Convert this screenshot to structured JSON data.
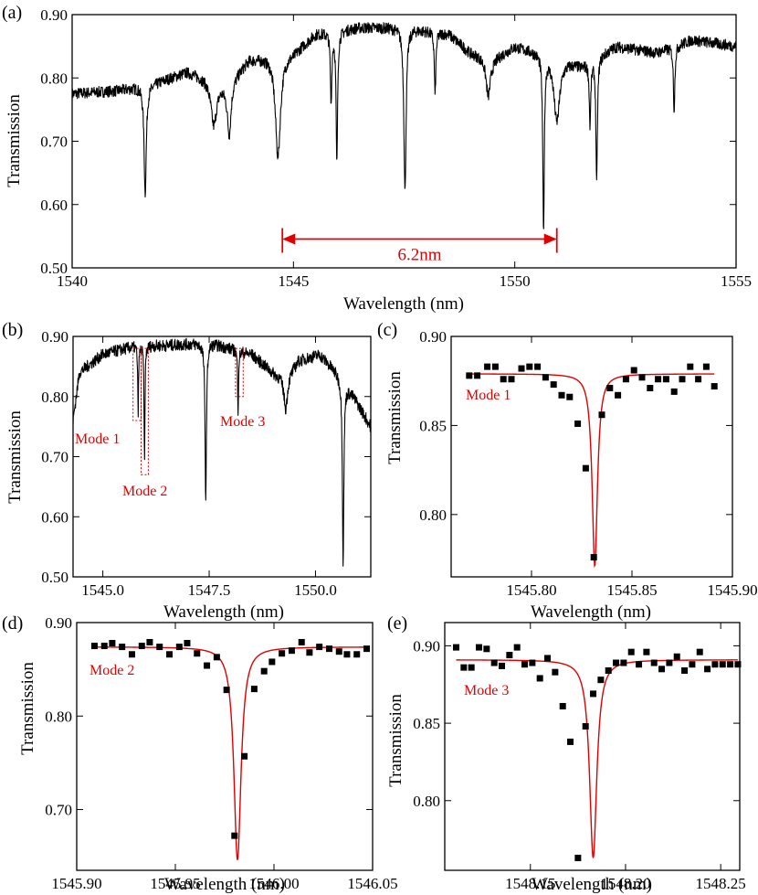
{
  "figure": {
    "colors": {
      "spectrum": "#000000",
      "fit": "#e00000",
      "annotation": "#e00000",
      "point": "#000000"
    }
  },
  "chart_data": [
    {
      "panel": "(a)",
      "type": "line",
      "xlabel": "Wavelength (nm)",
      "ylabel": "Transmission",
      "xlim": [
        1540,
        1555
      ],
      "ylim": [
        0.5,
        0.9
      ],
      "xticks": [
        1540,
        1545,
        1550,
        1555
      ],
      "xtick_labels": [
        "1540",
        "1545",
        "1550",
        "1555"
      ],
      "yticks": [
        0.5,
        0.6,
        0.7,
        0.8,
        0.9
      ],
      "ytick_labels": [
        "0.50",
        "0.60",
        "0.70",
        "0.80",
        "0.90"
      ],
      "baseline": [
        [
          1540,
          0.775
        ],
        [
          1541.0,
          0.78
        ],
        [
          1541.8,
          0.79
        ],
        [
          1542.6,
          0.81
        ],
        [
          1543.5,
          0.79
        ],
        [
          1544.0,
          0.83
        ],
        [
          1545.0,
          0.84
        ],
        [
          1545.5,
          0.87
        ],
        [
          1546.5,
          0.88
        ],
        [
          1547.5,
          0.88
        ],
        [
          1548.5,
          0.87
        ],
        [
          1549.0,
          0.84
        ],
        [
          1549.5,
          0.83
        ],
        [
          1550.0,
          0.85
        ],
        [
          1550.6,
          0.84
        ],
        [
          1551.5,
          0.82
        ],
        [
          1552.3,
          0.85
        ],
        [
          1553.2,
          0.84
        ],
        [
          1554.0,
          0.86
        ],
        [
          1555,
          0.85
        ]
      ],
      "dips": [
        {
          "center": 1541.65,
          "depth": 0.17,
          "width": 0.03
        },
        {
          "center": 1543.2,
          "depth": 0.07,
          "width": 0.08
        },
        {
          "center": 1543.55,
          "depth": 0.08,
          "width": 0.05
        },
        {
          "center": 1544.65,
          "depth": 0.16,
          "width": 0.07
        },
        {
          "center": 1545.85,
          "depth": 0.11,
          "width": 0.02
        },
        {
          "center": 1545.98,
          "depth": 0.21,
          "width": 0.02
        },
        {
          "center": 1547.52,
          "depth": 0.26,
          "width": 0.03
        },
        {
          "center": 1548.2,
          "depth": 0.1,
          "width": 0.02
        },
        {
          "center": 1549.4,
          "depth": 0.06,
          "width": 0.06
        },
        {
          "center": 1550.65,
          "depth": 0.28,
          "width": 0.02
        },
        {
          "center": 1550.95,
          "depth": 0.1,
          "width": 0.08
        },
        {
          "center": 1551.7,
          "depth": 0.1,
          "width": 0.02
        },
        {
          "center": 1551.85,
          "depth": 0.2,
          "width": 0.02
        },
        {
          "center": 1553.6,
          "depth": 0.1,
          "width": 0.02
        }
      ],
      "annotation": {
        "text": "6.2nm",
        "x_from": 1544.75,
        "x_to": 1550.95,
        "y": 0.537
      }
    },
    {
      "panel": "(b)",
      "type": "line",
      "xlabel": "Wavelength (nm)",
      "ylabel": "Transmission",
      "xlim": [
        1544.3,
        1551.3
      ],
      "ylim": [
        0.5,
        0.9
      ],
      "xticks": [
        1545.0,
        1547.5,
        1550.0
      ],
      "xtick_labels": [
        "1545.0",
        "1547.5",
        "1550.0"
      ],
      "yticks": [
        0.5,
        0.6,
        0.7,
        0.8,
        0.9
      ],
      "ytick_labels": [
        "0.50",
        "0.60",
        "0.70",
        "0.80",
        "0.90"
      ],
      "baseline": [
        [
          1544.3,
          0.76
        ],
        [
          1544.45,
          0.84
        ],
        [
          1545.0,
          0.87
        ],
        [
          1545.8,
          0.885
        ],
        [
          1546.5,
          0.885
        ],
        [
          1547.5,
          0.89
        ],
        [
          1548.5,
          0.87
        ],
        [
          1549.0,
          0.84
        ],
        [
          1549.3,
          0.83
        ],
        [
          1549.6,
          0.86
        ],
        [
          1550.1,
          0.87
        ],
        [
          1550.5,
          0.84
        ],
        [
          1550.9,
          0.8
        ],
        [
          1551.3,
          0.75
        ]
      ],
      "dips": [
        {
          "center": 1545.83,
          "depth": 0.11,
          "width": 0.012
        },
        {
          "center": 1545.98,
          "depth": 0.2,
          "width": 0.012
        },
        {
          "center": 1547.42,
          "depth": 0.26,
          "width": 0.02
        },
        {
          "center": 1548.18,
          "depth": 0.1,
          "width": 0.012
        },
        {
          "center": 1549.3,
          "depth": 0.05,
          "width": 0.05
        },
        {
          "center": 1550.65,
          "depth": 0.3,
          "width": 0.02
        }
      ],
      "boxes": [
        {
          "label": "Mode 1",
          "x_from": 1545.71,
          "x_to": 1545.9,
          "y_from": 0.76,
          "y_to": 0.88
        },
        {
          "label": "Mode 2",
          "x_from": 1545.9,
          "x_to": 1546.07,
          "y_from": 0.67,
          "y_to": 0.88
        },
        {
          "label": "Mode 3",
          "x_from": 1548.12,
          "x_to": 1548.3,
          "y_from": 0.8,
          "y_to": 0.88
        }
      ]
    },
    {
      "panel": "(c)",
      "type": "scatter",
      "mode_label": "Mode 1",
      "xlabel": "Wavelength (nm)",
      "ylabel": "Transmission",
      "xlim": [
        1545.76,
        1545.9
      ],
      "ylim": [
        0.765,
        0.9
      ],
      "xticks": [
        1545.8,
        1545.85,
        1545.9
      ],
      "xtick_labels": [
        "1545.80",
        "1545.85",
        "1545.90"
      ],
      "yticks": [
        0.8,
        0.85,
        0.9
      ],
      "ytick_labels": [
        "0.80",
        "0.85",
        "0.90"
      ],
      "x": [
        1545.769,
        1545.773,
        1545.778,
        1545.782,
        1545.786,
        1545.79,
        1545.795,
        1545.799,
        1545.803,
        1545.807,
        1545.811,
        1545.815,
        1545.819,
        1545.823,
        1545.827,
        1545.831,
        1545.835,
        1545.839,
        1545.843,
        1545.847,
        1545.851,
        1545.855,
        1545.859,
        1545.863,
        1545.867,
        1545.871,
        1545.875,
        1545.879,
        1545.883,
        1545.887,
        1545.891
      ],
      "y": [
        0.878,
        0.878,
        0.883,
        0.883,
        0.876,
        0.876,
        0.882,
        0.883,
        0.883,
        0.877,
        0.873,
        0.867,
        0.866,
        0.851,
        0.826,
        0.776,
        0.856,
        0.871,
        0.867,
        0.876,
        0.881,
        0.877,
        0.871,
        0.876,
        0.876,
        0.869,
        0.876,
        0.883,
        0.876,
        0.883,
        0.872
      ],
      "fit": {
        "center": 1545.8315,
        "hwhm": 0.0016,
        "baseline": 0.879,
        "depth": 0.108
      }
    },
    {
      "panel": "(d)",
      "type": "scatter",
      "mode_label": "Mode 2",
      "xlabel": "Wavelength (nm)",
      "ylabel": "Transmission",
      "xlim": [
        1545.9,
        1546.05
      ],
      "ylim": [
        0.635,
        0.9
      ],
      "xticks": [
        1545.9,
        1545.95,
        1546.0,
        1546.05
      ],
      "xtick_labels": [
        "1545.90",
        "1545.95",
        "1546.00",
        "1546.05"
      ],
      "yticks": [
        0.7,
        0.8,
        0.9
      ],
      "ytick_labels": [
        "0.70",
        "0.80",
        "0.90"
      ],
      "x": [
        1545.909,
        1545.914,
        1545.918,
        1545.923,
        1545.928,
        1545.933,
        1545.937,
        1545.942,
        1545.947,
        1545.952,
        1545.956,
        1545.961,
        1545.966,
        1545.971,
        1545.976,
        1545.98,
        1545.985,
        1545.99,
        1545.995,
        1545.999,
        1546.004,
        1546.009,
        1546.014,
        1546.018,
        1546.023,
        1546.028,
        1546.033,
        1546.037,
        1546.042,
        1546.047
      ],
      "y": [
        0.875,
        0.875,
        0.878,
        0.874,
        0.866,
        0.875,
        0.879,
        0.874,
        0.866,
        0.874,
        0.878,
        0.867,
        0.854,
        0.863,
        0.828,
        0.672,
        0.757,
        0.829,
        0.848,
        0.858,
        0.867,
        0.87,
        0.879,
        0.868,
        0.874,
        0.872,
        0.869,
        0.866,
        0.866,
        0.872
      ],
      "fit": {
        "center": 1545.9815,
        "hwhm": 0.0022,
        "baseline": 0.874,
        "depth": 0.228
      }
    },
    {
      "panel": "(e)",
      "type": "scatter",
      "mode_label": "Mode 3",
      "xlabel": "Wavelength (nm)",
      "ylabel": "Transmission",
      "xlim": [
        1548.105,
        1548.26
      ],
      "ylim": [
        0.755,
        0.915
      ],
      "xticks": [
        1548.15,
        1548.2,
        1548.25
      ],
      "xtick_labels": [
        "1548.15",
        "1548.20",
        "1548.25"
      ],
      "yticks": [
        0.8,
        0.85,
        0.9
      ],
      "ytick_labels": [
        "0.80",
        "0.85",
        "0.90"
      ],
      "x": [
        1548.111,
        1548.115,
        1548.119,
        1548.123,
        1548.127,
        1548.131,
        1548.135,
        1548.139,
        1548.143,
        1548.147,
        1548.151,
        1548.155,
        1548.159,
        1548.163,
        1548.167,
        1548.171,
        1548.175,
        1548.179,
        1548.183,
        1548.187,
        1548.191,
        1548.195,
        1548.199,
        1548.203,
        1548.207,
        1548.211,
        1548.215,
        1548.219,
        1548.223,
        1548.227,
        1548.231,
        1548.235,
        1548.239,
        1548.243,
        1548.247,
        1548.251,
        1548.255,
        1548.259
      ],
      "y": [
        0.899,
        0.886,
        0.886,
        0.899,
        0.898,
        0.889,
        0.887,
        0.894,
        0.899,
        0.888,
        0.889,
        0.879,
        0.892,
        0.883,
        0.861,
        0.838,
        0.763,
        0.848,
        0.869,
        0.878,
        0.884,
        0.889,
        0.889,
        0.896,
        0.888,
        0.896,
        0.889,
        0.885,
        0.889,
        0.893,
        0.884,
        0.888,
        0.896,
        0.885,
        0.888,
        0.888,
        0.888,
        0.888
      ],
      "fit": {
        "center": 1548.183,
        "hwhm": 0.0023,
        "baseline": 0.891,
        "depth": 0.128
      }
    }
  ]
}
